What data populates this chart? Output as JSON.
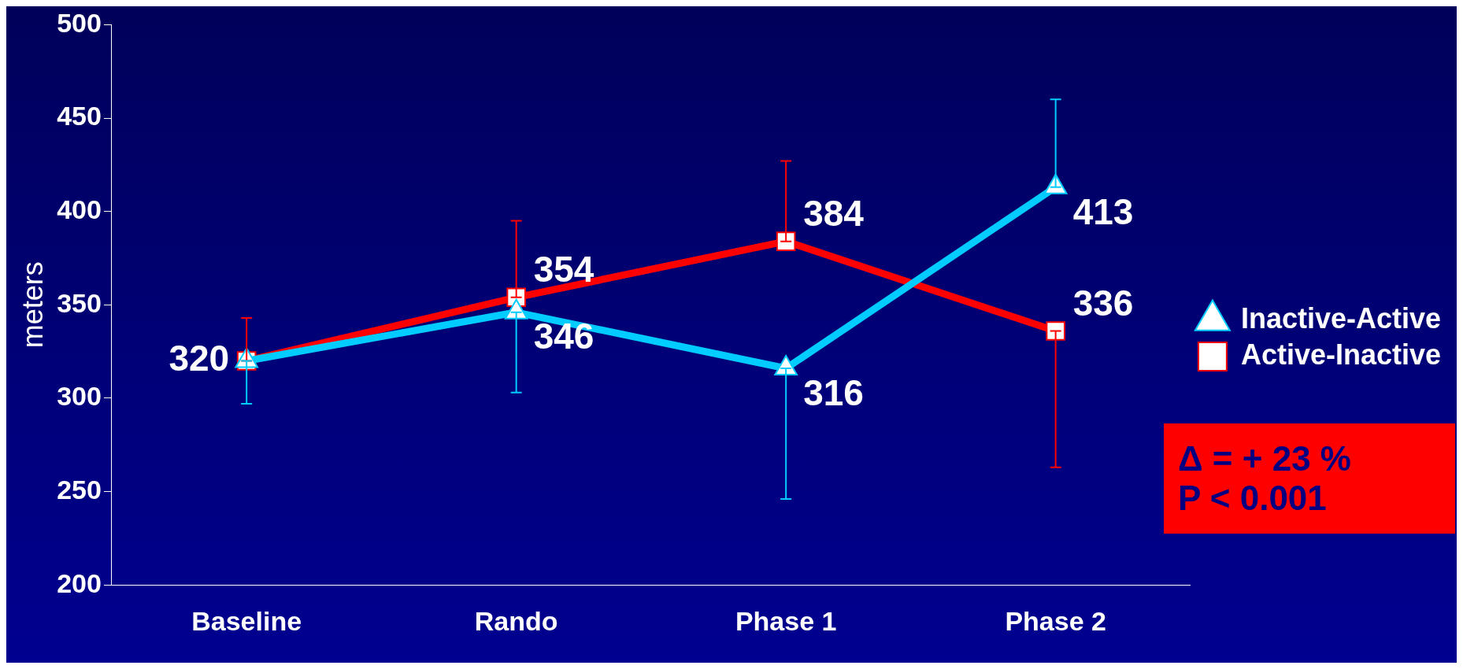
{
  "chart_data": {
    "type": "line",
    "ylabel": "meters",
    "categories": [
      "Baseline",
      "Rando",
      "Phase 1",
      "Phase 2"
    ],
    "ylim": [
      200,
      500
    ],
    "yticks": [
      200,
      250,
      300,
      350,
      400,
      450,
      500
    ],
    "grid": false,
    "legend": "right",
    "annotations": [
      "Δ = + 23 %\nP < 0.001"
    ],
    "series": [
      {
        "name": "Active-Inactive",
        "color": "#ff0000",
        "marker": "square",
        "values": [
          320,
          354,
          384,
          336
        ],
        "value_labels": [
          "320",
          "354",
          "384",
          "336"
        ],
        "errors": [
          [
            320,
            343
          ],
          [
            354,
            395
          ],
          [
            384,
            427
          ],
          [
            263,
            336
          ]
        ]
      },
      {
        "name": "Inactive-Active",
        "color": "#00ccff",
        "marker": "triangle",
        "values": [
          320,
          346,
          316,
          413
        ],
        "value_labels": [
          null,
          "346",
          "316",
          "413"
        ],
        "errors": [
          [
            297,
            320
          ],
          [
            303,
            346
          ],
          [
            246,
            316
          ],
          [
            413,
            460
          ]
        ]
      }
    ]
  }
}
